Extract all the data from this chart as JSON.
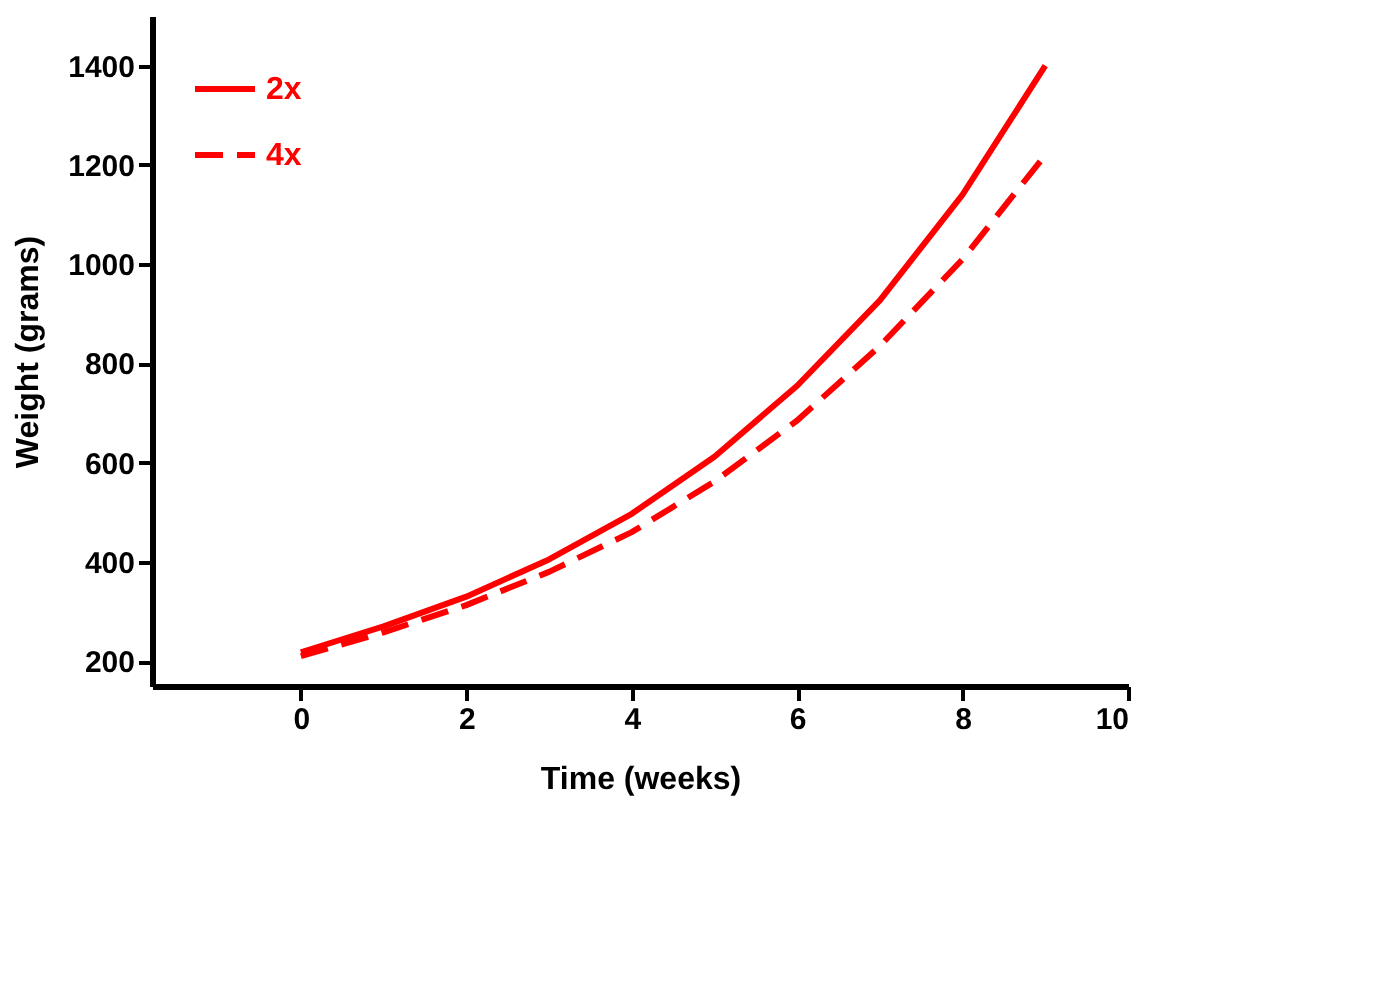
{
  "chart_data": {
    "type": "line",
    "xlabel": "Time (weeks)",
    "ylabel": "Weight (grams)",
    "x": [
      0,
      1,
      2,
      3,
      4,
      5,
      6,
      7,
      8,
      9
    ],
    "xlim": [
      -1.8,
      10
    ],
    "xticks": [
      0,
      2,
      4,
      6,
      8,
      10
    ],
    "ylim": [
      150,
      1500
    ],
    "yticks": [
      200,
      400,
      600,
      800,
      1000,
      1200,
      1400
    ],
    "grid": false,
    "legend": "top left",
    "marker": "none",
    "series": [
      {
        "name": "2x",
        "color": "#ff0000",
        "line_style": "solid",
        "values": [
          218,
          270,
          330,
          405,
          497,
          612,
          755,
          927,
          1140,
          1400
        ]
      },
      {
        "name": "4x",
        "color": "#ff0000",
        "line_style": "dashed",
        "values": [
          210,
          258,
          313,
          380,
          460,
          562,
          685,
          835,
          1010,
          1220
        ]
      }
    ]
  }
}
